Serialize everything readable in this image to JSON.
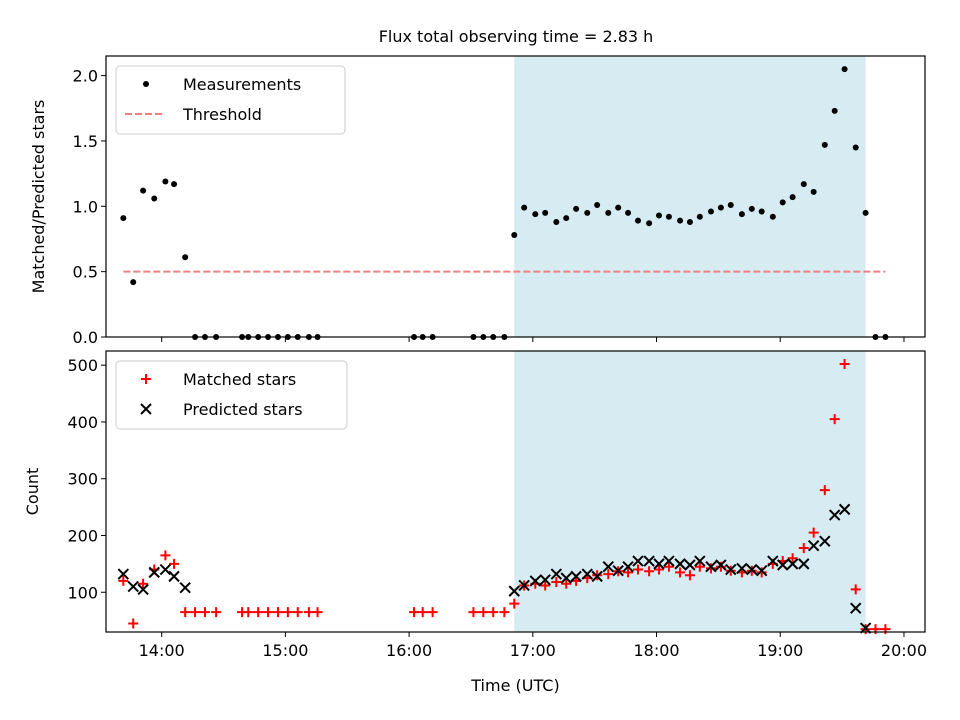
{
  "figure": {
    "title": "Flux total observing time = 2.83 h"
  },
  "chart_data": [
    {
      "type": "scatter",
      "ylabel": "Matched/Predicted stars",
      "xlabel": "",
      "xlim": [
        13.55,
        20.17
      ],
      "ylim": [
        0,
        2.15
      ],
      "x_ticks": [
        14,
        15,
        16,
        17,
        18,
        19,
        20
      ],
      "x_tick_labels": [
        "14:00",
        "15:00",
        "16:00",
        "17:00",
        "18:00",
        "19:00",
        "20:00"
      ],
      "y_ticks": [
        0.0,
        0.5,
        1.0,
        1.5,
        2.0
      ],
      "y_tick_labels": [
        "0.0",
        "0.5",
        "1.0",
        "1.5",
        "2.0"
      ],
      "shaded_span": [
        16.85,
        19.69
      ],
      "legend_position": "upper left",
      "series": [
        {
          "name": "Measurements",
          "marker": "dot",
          "color": "#000000",
          "x": [
            13.69,
            13.77,
            13.85,
            13.94,
            14.03,
            14.1,
            14.19,
            14.27,
            14.35,
            14.44,
            14.65,
            14.7,
            14.78,
            14.86,
            14.94,
            15.02,
            15.1,
            15.19,
            15.26,
            16.04,
            16.11,
            16.19,
            16.52,
            16.6,
            16.68,
            16.77,
            16.85,
            16.93,
            17.02,
            17.1,
            17.19,
            17.27,
            17.35,
            17.44,
            17.52,
            17.61,
            17.69,
            17.77,
            17.85,
            17.94,
            18.02,
            18.1,
            18.19,
            18.27,
            18.35,
            18.44,
            18.52,
            18.6,
            18.69,
            18.77,
            18.85,
            18.94,
            19.02,
            19.1,
            19.19,
            19.27,
            19.36,
            19.44,
            19.52,
            19.61,
            19.69,
            19.77,
            19.85
          ],
          "y": [
            0.91,
            0.42,
            1.12,
            1.06,
            1.19,
            1.17,
            0.61,
            0.0,
            0.0,
            0.0,
            0.0,
            0.0,
            0.0,
            0.0,
            0.0,
            0.0,
            0.0,
            0.0,
            0.0,
            0.0,
            0.0,
            0.0,
            0.0,
            0.0,
            0.0,
            0.0,
            0.78,
            0.99,
            0.94,
            0.95,
            0.88,
            0.91,
            0.98,
            0.95,
            1.01,
            0.95,
            0.99,
            0.95,
            0.89,
            0.87,
            0.93,
            0.92,
            0.89,
            0.88,
            0.92,
            0.96,
            0.99,
            1.01,
            0.94,
            0.98,
            0.96,
            0.92,
            1.03,
            1.07,
            1.17,
            1.11,
            1.47,
            1.73,
            2.05,
            1.45,
            0.95,
            0.0,
            0.0
          ]
        },
        {
          "name": "Threshold",
          "marker": "dashed-line",
          "color": "#f08080",
          "x": [
            13.69,
            19.85
          ],
          "y": [
            0.5,
            0.5
          ]
        }
      ]
    },
    {
      "type": "scatter",
      "ylabel": "Count",
      "xlabel": "Time (UTC)",
      "xlim": [
        13.55,
        20.17
      ],
      "ylim": [
        30,
        525
      ],
      "x_ticks": [
        14,
        15,
        16,
        17,
        18,
        19,
        20
      ],
      "x_tick_labels": [
        "14:00",
        "15:00",
        "16:00",
        "17:00",
        "18:00",
        "19:00",
        "20:00"
      ],
      "y_ticks": [
        100,
        200,
        300,
        400,
        500
      ],
      "y_tick_labels": [
        "100",
        "200",
        "300",
        "400",
        "500"
      ],
      "shaded_span": [
        16.85,
        19.69
      ],
      "legend_position": "upper left",
      "series": [
        {
          "name": "Matched stars",
          "marker": "plus",
          "color": "#ff0000",
          "x": [
            13.69,
            13.77,
            13.85,
            13.94,
            14.03,
            14.1,
            14.19,
            14.27,
            14.35,
            14.44,
            14.65,
            14.7,
            14.78,
            14.86,
            14.94,
            15.02,
            15.1,
            15.19,
            15.26,
            16.04,
            16.11,
            16.19,
            16.52,
            16.6,
            16.68,
            16.77,
            16.85,
            16.93,
            17.02,
            17.1,
            17.19,
            17.27,
            17.35,
            17.44,
            17.52,
            17.61,
            17.69,
            17.77,
            17.85,
            17.94,
            18.02,
            18.1,
            18.19,
            18.27,
            18.35,
            18.44,
            18.52,
            18.6,
            18.69,
            18.77,
            18.85,
            18.94,
            19.02,
            19.1,
            19.19,
            19.27,
            19.36,
            19.44,
            19.52,
            19.61,
            19.69,
            19.77,
            19.85
          ],
          "y": [
            120,
            45,
            115,
            140,
            165,
            150,
            65,
            65,
            65,
            65,
            65,
            65,
            65,
            65,
            65,
            65,
            65,
            65,
            65,
            65,
            65,
            65,
            65,
            65,
            65,
            65,
            80,
            112,
            115,
            112,
            118,
            115,
            120,
            125,
            130,
            132,
            137,
            135,
            140,
            137,
            140,
            145,
            135,
            130,
            145,
            142,
            145,
            138,
            135,
            138,
            135,
            150,
            155,
            160,
            178,
            205,
            280,
            405,
            502,
            105,
            35,
            35,
            35
          ]
        },
        {
          "name": "Predicted stars",
          "marker": "x",
          "color": "#000000",
          "x": [
            13.69,
            13.77,
            13.85,
            13.94,
            14.03,
            14.1,
            14.19,
            16.85,
            16.93,
            17.02,
            17.1,
            17.19,
            17.27,
            17.35,
            17.44,
            17.52,
            17.61,
            17.69,
            17.77,
            17.85,
            17.94,
            18.02,
            18.1,
            18.19,
            18.27,
            18.35,
            18.44,
            18.52,
            18.6,
            18.69,
            18.77,
            18.85,
            18.94,
            19.02,
            19.1,
            19.19,
            19.27,
            19.36,
            19.44,
            19.52,
            19.61,
            19.69
          ],
          "y": [
            132,
            110,
            105,
            135,
            140,
            128,
            108,
            102,
            112,
            120,
            122,
            132,
            125,
            128,
            132,
            128,
            145,
            138,
            145,
            155,
            155,
            150,
            155,
            150,
            148,
            155,
            145,
            148,
            140,
            142,
            140,
            138,
            155,
            148,
            150,
            150,
            182,
            190,
            236,
            246,
            72,
            37
          ]
        }
      ]
    }
  ]
}
